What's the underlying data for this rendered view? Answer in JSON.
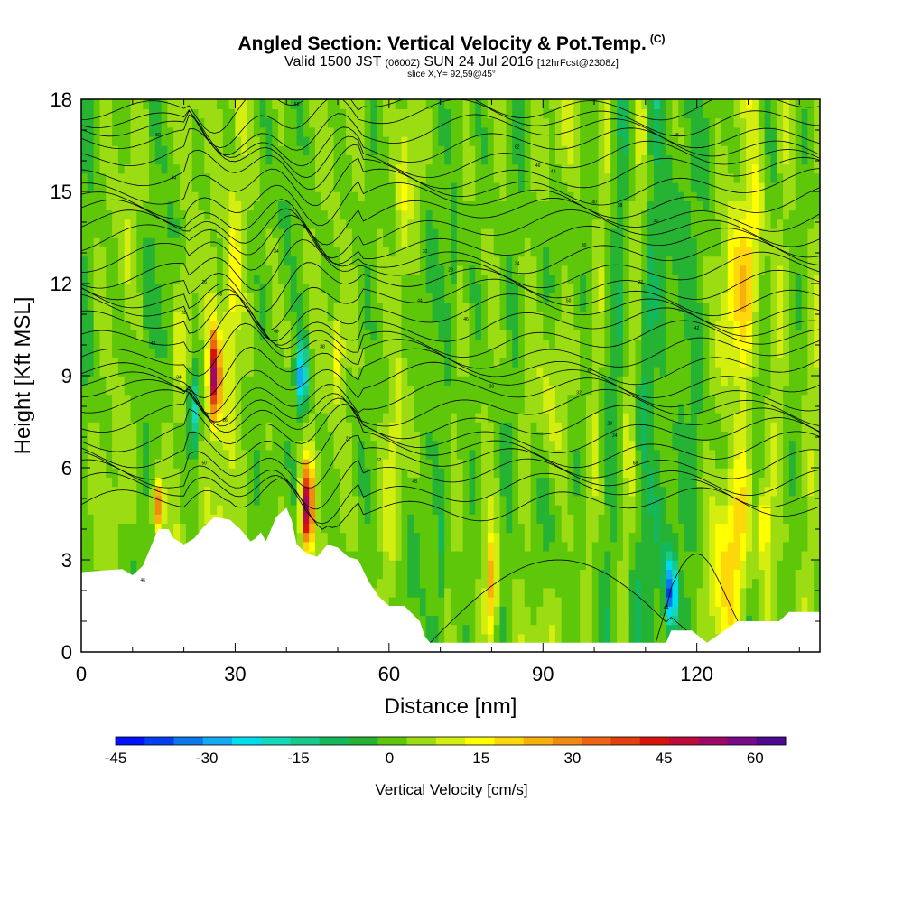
{
  "header": {
    "title": "Angled Section: Vertical Velocity & Pot.Temp.",
    "title_tag": "(C)",
    "valid_prefix": "Valid 1500 JST",
    "valid_utc": "(0600Z)",
    "valid_date": "SUN 24 Jul 2016",
    "forecast": "[12hrFcst@2308z]",
    "slice": "slice X,Y= 92,59@45°"
  },
  "chart_data": {
    "type": "heatmap",
    "xlabel": "Distance [nm]",
    "ylabel": "Height [Kft MSL]",
    "xlim": [
      0,
      144
    ],
    "ylim": [
      0,
      18
    ],
    "x_ticks": [
      "0",
      "30",
      "60",
      "90",
      "120"
    ],
    "y_ticks": [
      "0",
      "3",
      "6",
      "9",
      "12",
      "15",
      "18"
    ],
    "colorbar": {
      "title": "Vertical Velocity [cm/s]",
      "tick_labels": [
        "-45",
        "-30",
        "-15",
        "0",
        "15",
        "30",
        "45",
        "60"
      ],
      "levels": [
        -45,
        -40,
        -35,
        -30,
        -25,
        -20,
        -15,
        -10,
        -5,
        0,
        5,
        10,
        15,
        20,
        25,
        30,
        35,
        40,
        45,
        50,
        55,
        60,
        65
      ],
      "colors": [
        "#0012ff",
        "#0040f0",
        "#0a78ea",
        "#12aaf0",
        "#00dcec",
        "#14d8b8",
        "#17c98a",
        "#14b85a",
        "#26b232",
        "#5ec70a",
        "#9cdc12",
        "#d4ee10",
        "#ffff00",
        "#ffd80c",
        "#f8b00c",
        "#f38a10",
        "#ee6414",
        "#e2400e",
        "#d7140c",
        "#bf0a3c",
        "#a00868",
        "#780a88",
        "#4e0a8e"
      ]
    },
    "terrain_height_kft": [
      [
        0,
        2.6
      ],
      [
        8,
        2.7
      ],
      [
        10,
        2.5
      ],
      [
        12,
        2.8
      ],
      [
        13,
        3.2
      ],
      [
        14,
        3.6
      ],
      [
        15,
        4.0
      ],
      [
        17,
        4.0
      ],
      [
        18,
        3.7
      ],
      [
        20,
        3.5
      ],
      [
        22,
        3.7
      ],
      [
        24,
        4.1
      ],
      [
        26,
        4.4
      ],
      [
        29,
        4.3
      ],
      [
        31,
        4.0
      ],
      [
        33,
        3.6
      ],
      [
        34,
        3.7
      ],
      [
        35,
        3.9
      ],
      [
        36,
        3.6
      ],
      [
        38,
        4.4
      ],
      [
        40,
        4.7
      ],
      [
        41,
        4.3
      ],
      [
        42,
        3.5
      ],
      [
        44,
        3.2
      ],
      [
        46,
        3.1
      ],
      [
        48,
        3.5
      ],
      [
        50,
        3.4
      ],
      [
        52,
        3.1
      ],
      [
        54,
        3.0
      ],
      [
        56,
        2.3
      ],
      [
        58,
        1.8
      ],
      [
        60,
        1.5
      ],
      [
        63,
        1.5
      ],
      [
        66,
        1.0
      ],
      [
        67,
        0.5
      ],
      [
        68,
        0.3
      ],
      [
        114,
        0.3
      ],
      [
        115,
        0.7
      ],
      [
        119,
        0.7
      ],
      [
        122,
        0.3
      ],
      [
        128,
        1.0
      ],
      [
        136,
        1.0
      ],
      [
        138,
        1.3
      ],
      [
        144,
        1.3
      ]
    ],
    "vertical_velocity_features": [
      {
        "x": 26,
        "y_range": [
          7.5,
          10.5
        ],
        "value": 55
      },
      {
        "x": 44,
        "y_range": [
          3.5,
          6.0
        ],
        "value": 60
      },
      {
        "x": 22,
        "y_range": [
          6.5,
          9.0
        ],
        "value": -20
      },
      {
        "x": 43,
        "y_range": [
          8.0,
          10.0
        ],
        "value": -30
      },
      {
        "x": 115,
        "y_range": [
          1.0,
          3.0
        ],
        "value": -35
      },
      {
        "x": 15,
        "y_range": [
          4.0,
          5.5
        ],
        "value": 40
      },
      {
        "x": 50,
        "y_range": [
          8.5,
          11.0
        ],
        "value": 20
      },
      {
        "x": 80,
        "y_range": [
          0.5,
          4.0
        ],
        "value": 30
      },
      {
        "x": 133,
        "y_range": [
          3.0,
          5.5
        ],
        "value": 25
      }
    ],
    "contour_labels": [
      "68",
      "50",
      "62",
      "48",
      "46",
      "44",
      "42",
      "40",
      "38",
      "36",
      "34",
      "32",
      "30",
      "28",
      "26",
      "24",
      "22"
    ]
  }
}
